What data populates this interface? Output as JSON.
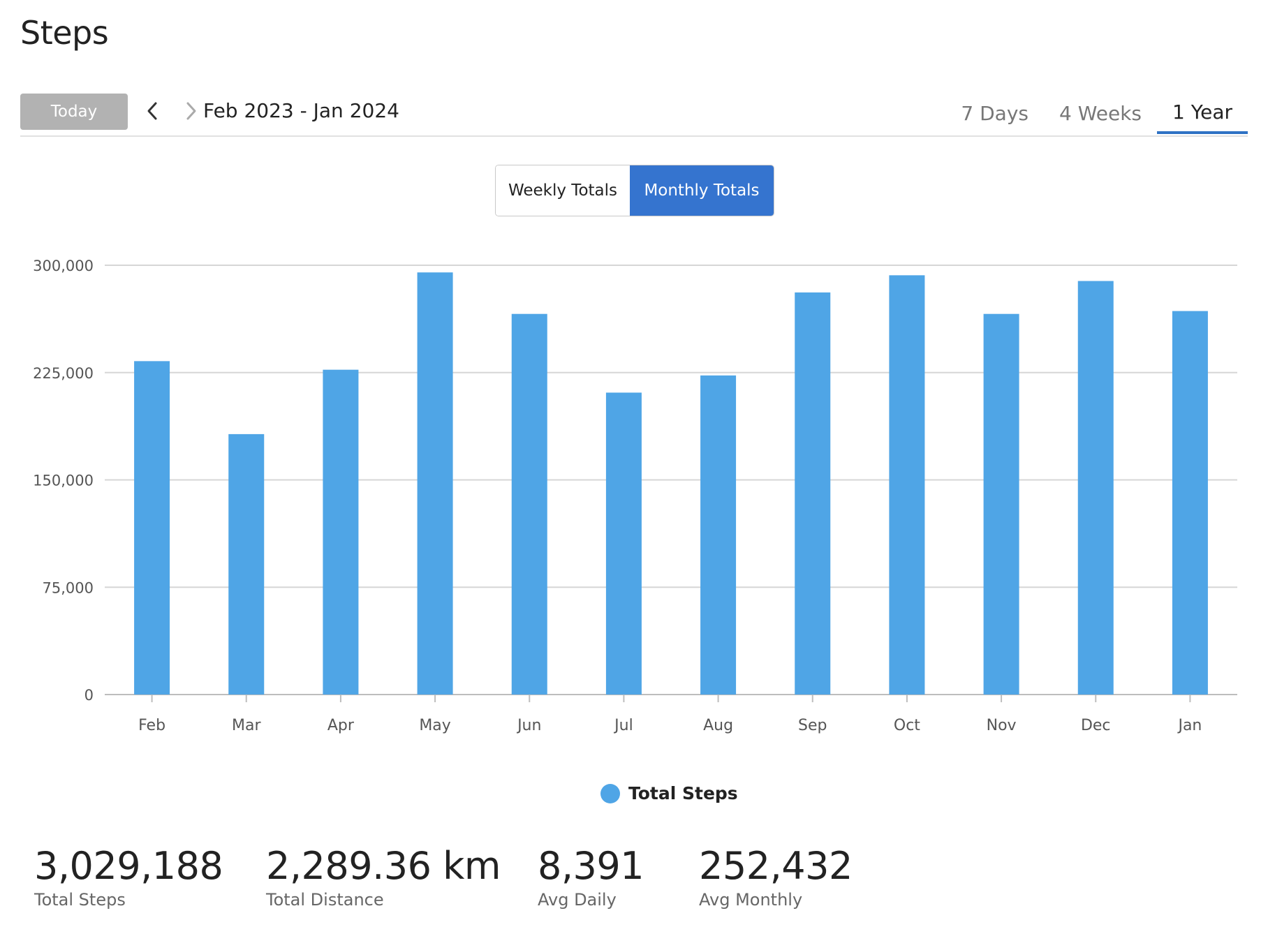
{
  "page": {
    "title": "Steps"
  },
  "toolbar": {
    "today_label": "Today",
    "prev_icon": "chevron-left-icon",
    "next_icon": "chevron-right-icon",
    "date_range": "Feb 2023 - Jan 2024",
    "tabs": [
      {
        "label": "7 Days",
        "active": false
      },
      {
        "label": "4 Weeks",
        "active": false
      },
      {
        "label": "1 Year",
        "active": true
      }
    ]
  },
  "toggle": {
    "weekly_label": "Weekly Totals",
    "monthly_label": "Monthly Totals",
    "selected": "Monthly Totals"
  },
  "colors": {
    "accent": "#3574cf",
    "bar": "#4fa5e6",
    "tab_underline": "#2f72c4",
    "today_bg": "#b2b2b2"
  },
  "chart_data": {
    "type": "bar",
    "categories": [
      "Feb",
      "Mar",
      "Apr",
      "May",
      "Jun",
      "Jul",
      "Aug",
      "Sep",
      "Oct",
      "Nov",
      "Dec",
      "Jan"
    ],
    "series": [
      {
        "name": "Total Steps",
        "values": [
          233000,
          182000,
          227000,
          295000,
          266000,
          211000,
          223000,
          281000,
          293000,
          266000,
          289000,
          268000
        ]
      }
    ],
    "yticks": [
      "0",
      "75,000",
      "150,000",
      "225,000",
      "300,000"
    ],
    "ytick_values": [
      0,
      75000,
      150000,
      225000,
      300000
    ],
    "ylim": [
      0,
      300000
    ],
    "grid": true,
    "legend_position": "bottom-center"
  },
  "legend": {
    "label": "Total Steps"
  },
  "stats": [
    {
      "value": "3,029,188",
      "label": "Total Steps"
    },
    {
      "value": "2,289.36 km",
      "label": "Total Distance"
    },
    {
      "value": "8,391",
      "label": "Avg Daily"
    },
    {
      "value": "252,432",
      "label": "Avg Monthly"
    }
  ]
}
